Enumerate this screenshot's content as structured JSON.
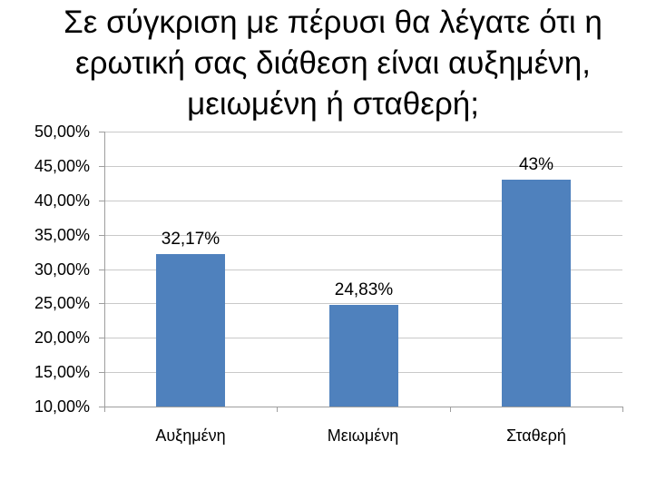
{
  "title": {
    "text": "Σε σύγκριση με πέρυσι θα λέγατε ότι η ερωτική σας διάθεση είναι αυξημένη, μειωμένη ή σταθερή;",
    "lines": [
      "Σε σύγκριση με πέρυσι θα λέγατε ότι η",
      "ερωτική σας διάθεση είναι αυξημένη,",
      "μειωμένη ή σταθερή;"
    ]
  },
  "chart_data": {
    "type": "bar",
    "categories": [
      "Αυξημένη",
      "Μειωμένη",
      "Σταθερή"
    ],
    "values": [
      32.17,
      24.83,
      43
    ],
    "data_labels": [
      "32,17%",
      "24,83%",
      "43%"
    ],
    "y_tick_labels": [
      "50,00%",
      "45,00%",
      "40,00%",
      "35,00%",
      "30,00%",
      "25,00%",
      "20,00%",
      "15,00%",
      "10,00%"
    ],
    "ylim": [
      10,
      50
    ],
    "y_step": 5,
    "xlabel": "",
    "ylabel": "",
    "grid": true,
    "legend": "none",
    "colors": {
      "bar": "#4F81BD",
      "gridline": "#C9C9C9",
      "axis": "#9E9E9E",
      "text": "#000000",
      "background": "#FFFFFF"
    }
  }
}
